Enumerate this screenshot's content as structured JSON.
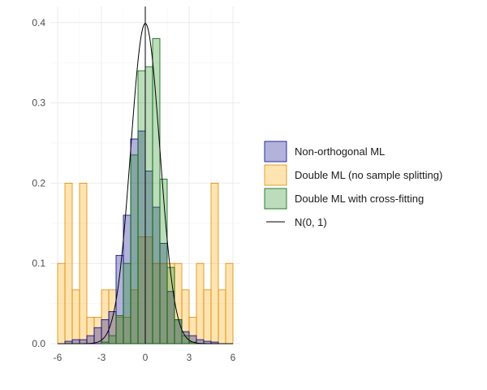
{
  "chart_data": {
    "type": "histogram",
    "bin_width": 0.5,
    "xlim": [
      -6.5,
      6.5
    ],
    "ylim": [
      0,
      0.42
    ],
    "x_ticks": [
      -6,
      -3,
      0,
      3,
      6
    ],
    "x_tick_labels": [
      "-6",
      "-3",
      "0",
      "3",
      "6"
    ],
    "y_ticks": [
      0,
      0.1,
      0.2,
      0.3,
      0.4
    ],
    "y_tick_labels": [
      "0.0",
      "0.1",
      "0.2",
      "0.3",
      "0.4"
    ],
    "grid": true,
    "legend_position": "right",
    "vertical_reference_line_x": 0,
    "series": [
      {
        "name": "Double ML (no sample splitting)",
        "fill": "#ffa500",
        "stroke": "#e08a00",
        "bin_starts": [
          -6,
          -5.5,
          -5,
          -4.5,
          -4,
          -3.5,
          -3,
          -2.5,
          -2,
          -1.5,
          -1,
          -0.5,
          0,
          0.5,
          1,
          1.5,
          2,
          2.5,
          3,
          3.5,
          4,
          4.5,
          5,
          5.5
        ],
        "density": [
          0.1,
          0.2,
          0.067,
          0.2,
          0.033,
          0.033,
          0.067,
          0.067,
          0.033,
          0.033,
          0.067,
          0.133,
          0.133,
          0.1,
          0.1,
          0.1,
          0.1,
          0.067,
          0.033,
          0.1,
          0.067,
          0.2,
          0.067,
          0.1
        ]
      },
      {
        "name": "Non-orthogonal ML",
        "fill": "#00008b",
        "stroke": "#00008b",
        "bin_starts": [
          -5.5,
          -5,
          -4.5,
          -4,
          -3.5,
          -3,
          -2.5,
          -2,
          -1.5,
          -1,
          -0.5,
          0,
          0.5,
          1,
          1.5,
          2,
          2.5,
          3,
          3.5,
          4,
          4.5
        ],
        "density": [
          0.003,
          0.005,
          0.005,
          0.01,
          0.02,
          0.03,
          0.04,
          0.11,
          0.16,
          0.255,
          0.265,
          0.215,
          0.17,
          0.125,
          0.065,
          0.03,
          0.015,
          0.01,
          0.005,
          0.003,
          0.002
        ]
      },
      {
        "name": "Double ML with cross-fitting",
        "fill": "#228b22",
        "stroke": "#006400",
        "bin_starts": [
          -3,
          -2.5,
          -2,
          -1.5,
          -1,
          -0.5,
          0,
          0.5,
          1,
          1.5,
          2,
          2.5,
          3
        ],
        "density": [
          0.002,
          0.01,
          0.035,
          0.1,
          0.235,
          0.34,
          0.345,
          0.38,
          0.205,
          0.095,
          0.03,
          0.01,
          0.002
        ]
      }
    ],
    "reference_curve": {
      "name": "N(0, 1)",
      "type": "normal_pdf",
      "mean": 0,
      "sd": 1,
      "color": "#000000"
    }
  }
}
